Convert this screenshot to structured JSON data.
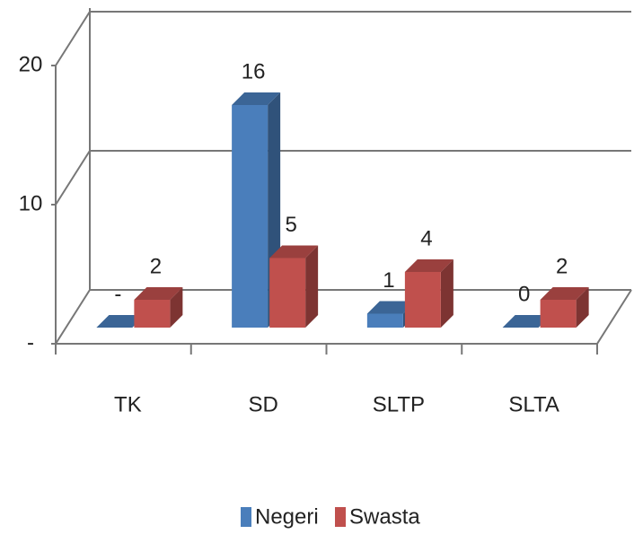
{
  "chart_data": {
    "type": "bar3d",
    "categories": [
      "TK",
      "SD",
      "SLTP",
      "SLTA"
    ],
    "series": [
      {
        "name": "Negeri",
        "color": "#4a7ebb",
        "values": [
          0,
          16,
          1,
          0
        ],
        "value_labels": [
          "-",
          "16",
          "1",
          "0"
        ]
      },
      {
        "name": "Swasta",
        "color": "#c0504d",
        "values": [
          2,
          5,
          4,
          2
        ]
      }
    ],
    "ylim": [
      0,
      20
    ],
    "yticks": [
      {
        "value": 0,
        "label": "-"
      },
      10,
      20
    ],
    "grid": true,
    "legend": "bottom"
  }
}
